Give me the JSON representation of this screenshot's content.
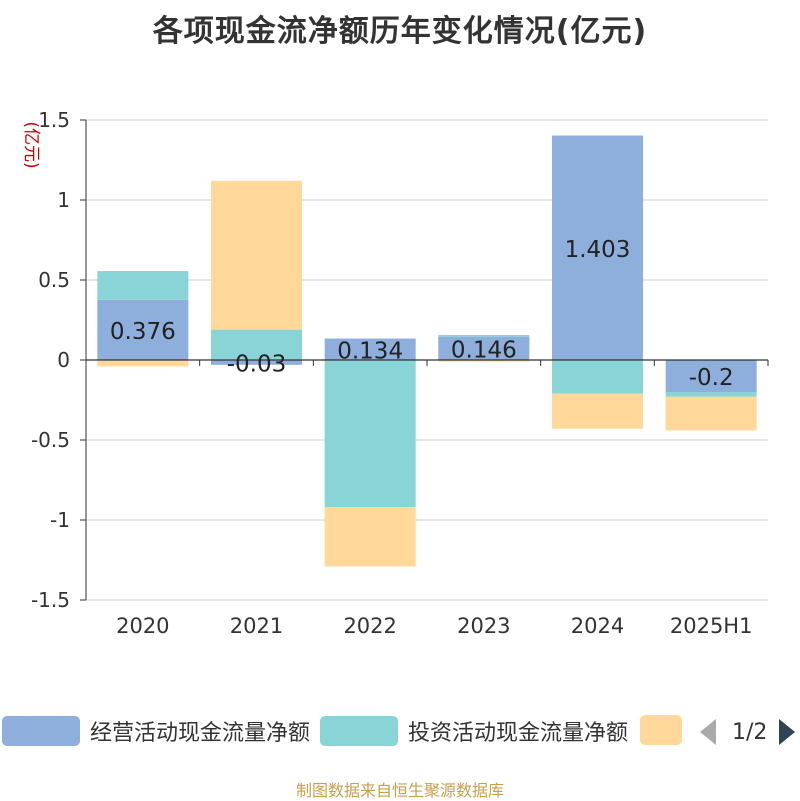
{
  "title": "各项现金流净额历年变化情况(亿元)",
  "footer": "制图数据来自恒生聚源数据库",
  "legend": {
    "items": [
      {
        "label": "经营活动现金流量净额",
        "color": "#8eaedb"
      },
      {
        "label": "投资活动现金流量净额",
        "color": "#88d4d6"
      },
      {
        "label": "",
        "color": "#ffd89a"
      }
    ],
    "page_text": "1/2"
  },
  "chart_data": {
    "type": "bar",
    "stacked": true,
    "categories": [
      "2020",
      "2021",
      "2022",
      "2023",
      "2024",
      "2025H1"
    ],
    "ylabel": "(亿元)",
    "ylim": [
      -1.5,
      1.5
    ],
    "yticks": [
      1.5,
      1,
      0.5,
      0,
      -0.5,
      -1,
      -1.5
    ],
    "ytick_labels": [
      "1.5",
      "1",
      "0.5",
      "0",
      "-0.5",
      "-1",
      "-1.5"
    ],
    "grid": true,
    "legend_position": "bottom",
    "series": [
      {
        "name": "经营活动现金流量净额",
        "color": "#8eaedb",
        "values": [
          0.376,
          -0.03,
          0.134,
          0.146,
          1.403,
          -0.2
        ],
        "labels": [
          "0.376",
          "-0.03",
          "0.134",
          "0.146",
          "1.403",
          "-0.2"
        ]
      },
      {
        "name": "投资活动现金流量净额",
        "color": "#88d4d6",
        "values": [
          0.18,
          0.19,
          -0.92,
          0.01,
          -0.21,
          -0.03
        ]
      },
      {
        "color": "#ffd89a",
        "values": [
          -0.04,
          0.93,
          -0.37,
          -0.01,
          -0.22,
          -0.21
        ]
      }
    ]
  }
}
